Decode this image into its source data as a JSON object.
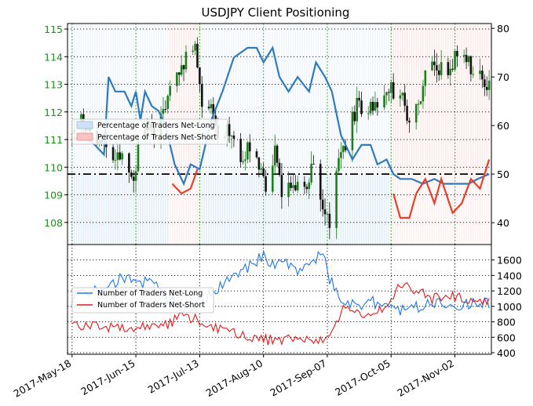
{
  "chart_data": [
    {
      "type": "candlestick",
      "title": "USDJPY Client Positioning",
      "x_ticks": [
        "2017-May-18",
        "2017-Jun-15",
        "2017-Jul-13",
        "2017-Aug-10",
        "2017-Sep-07",
        "2017-Oct-05",
        "2017-Nov-02"
      ],
      "x_range": [
        "2017-May-18",
        "2017-Nov-17"
      ],
      "left_axis": {
        "label": "",
        "range": [
          107.2,
          115.2
        ],
        "ticks": [
          108,
          109,
          110,
          111,
          112,
          113,
          114,
          115
        ],
        "color": "#228b22"
      },
      "right_axis": {
        "label": "",
        "range": [
          35.5,
          81
        ],
        "ticks": [
          40,
          50,
          60,
          70,
          80
        ]
      },
      "reference_line": {
        "axis": "right",
        "value": 50,
        "style": "dash-dot"
      },
      "price_path": [
        [
          "2017-May-18",
          111.2
        ],
        [
          "2017-May-22",
          111.6
        ],
        [
          "2017-May-26",
          111.3
        ],
        [
          "2017-May-31",
          110.8
        ],
        [
          "2017-Jun-05",
          110.3
        ],
        [
          "2017-Jun-09",
          110.4
        ],
        [
          "2017-Jun-14",
          109.5
        ],
        [
          "2017-Jun-16",
          110.9
        ],
        [
          "2017-Jun-20",
          111.4
        ],
        [
          "2017-Jun-23",
          111.3
        ],
        [
          "2017-Jun-27",
          112.1
        ],
        [
          "2017-Jul-03",
          113.2
        ],
        [
          "2017-Jul-07",
          114.0
        ],
        [
          "2017-Jul-11",
          114.2
        ],
        [
          "2017-Jul-14",
          112.5
        ],
        [
          "2017-Jul-18",
          112.0
        ],
        [
          "2017-Jul-21",
          111.2
        ],
        [
          "2017-Jul-26",
          111.4
        ],
        [
          "2017-Jul-31",
          110.4
        ],
        [
          "2017-Aug-03",
          110.7
        ],
        [
          "2017-Aug-07",
          110.6
        ],
        [
          "2017-Aug-11",
          109.2
        ],
        [
          "2017-Aug-15",
          110.6
        ],
        [
          "2017-Aug-18",
          109.2
        ],
        [
          "2017-Aug-23",
          109.2
        ],
        [
          "2017-Aug-28",
          109.1
        ],
        [
          "2017-Sep-01",
          110.2
        ],
        [
          "2017-Sep-05",
          108.8
        ],
        [
          "2017-Sep-08",
          107.9
        ],
        [
          "2017-Sep-12",
          110.2
        ],
        [
          "2017-Sep-15",
          110.8
        ],
        [
          "2017-Sep-20",
          112.3
        ],
        [
          "2017-Sep-25",
          111.9
        ],
        [
          "2017-Sep-29",
          112.5
        ],
        [
          "2017-Oct-04",
          112.8
        ],
        [
          "2017-Oct-09",
          112.6
        ],
        [
          "2017-Oct-13",
          111.8
        ],
        [
          "2017-Oct-17",
          112.2
        ],
        [
          "2017-Oct-20",
          113.4
        ],
        [
          "2017-Oct-25",
          113.8
        ],
        [
          "2017-Oct-30",
          113.0
        ],
        [
          "2017-Nov-02",
          114.1
        ],
        [
          "2017-Nov-06",
          113.9
        ],
        [
          "2017-Nov-10",
          113.5
        ],
        [
          "2017-Nov-15",
          113.2
        ],
        [
          "2017-Nov-17",
          112.9
        ]
      ],
      "pct_net_long": [
        [
          "2017-May-18",
          57
        ],
        [
          "2017-May-23",
          58
        ],
        [
          "2017-May-28",
          56
        ],
        [
          "2017-Jun-01",
          54
        ],
        [
          "2017-Jun-03",
          70
        ],
        [
          "2017-Jun-06",
          67
        ],
        [
          "2017-Jun-10",
          67
        ],
        [
          "2017-Jun-13",
          64
        ],
        [
          "2017-Jun-15",
          67
        ],
        [
          "2017-Jun-17",
          61
        ],
        [
          "2017-Jun-19",
          67
        ],
        [
          "2017-Jun-22",
          64
        ],
        [
          "2017-Jun-25",
          63
        ],
        [
          "2017-Jun-28",
          60
        ],
        [
          "2017-Jul-02",
          52
        ],
        [
          "2017-Jul-06",
          48
        ],
        [
          "2017-Jul-09",
          52
        ],
        [
          "2017-Jul-13",
          51
        ],
        [
          "2017-Jul-18",
          61
        ],
        [
          "2017-Jul-23",
          67
        ],
        [
          "2017-Jul-28",
          74
        ],
        [
          "2017-Aug-03",
          76
        ],
        [
          "2017-Aug-07",
          76
        ],
        [
          "2017-Aug-10",
          73
        ],
        [
          "2017-Aug-14",
          76
        ],
        [
          "2017-Aug-17",
          70
        ],
        [
          "2017-Aug-21",
          67
        ],
        [
          "2017-Aug-25",
          70
        ],
        [
          "2017-Aug-30",
          67
        ],
        [
          "2017-Sep-02",
          73
        ],
        [
          "2017-Sep-06",
          70
        ],
        [
          "2017-Sep-09",
          67
        ],
        [
          "2017-Sep-13",
          58
        ],
        [
          "2017-Sep-18",
          53
        ],
        [
          "2017-Sep-22",
          56
        ],
        [
          "2017-Sep-26",
          56
        ],
        [
          "2017-Sep-29",
          52
        ],
        [
          "2017-Oct-03",
          53
        ],
        [
          "2017-Oct-06",
          50
        ],
        [
          "2017-Oct-09",
          49
        ],
        [
          "2017-Oct-14",
          49
        ],
        [
          "2017-Oct-19",
          48
        ],
        [
          "2017-Oct-24",
          49
        ],
        [
          "2017-Oct-28",
          48
        ],
        [
          "2017-Nov-02",
          48
        ],
        [
          "2017-Nov-08",
          48
        ],
        [
          "2017-Nov-12",
          49
        ],
        [
          "2017-Nov-17",
          50
        ]
      ],
      "pct_net_short_series": [
        [
          "2017-Jul-01",
          48
        ],
        [
          "2017-Jul-05",
          46
        ],
        [
          "2017-Jul-09",
          47
        ],
        [
          "2017-Jul-12",
          51
        ],
        [
          "2017-Oct-06",
          46
        ],
        [
          "2017-Oct-09",
          41
        ],
        [
          "2017-Oct-13",
          41
        ],
        [
          "2017-Oct-16",
          46
        ],
        [
          "2017-Oct-20",
          49
        ],
        [
          "2017-Oct-24",
          44
        ],
        [
          "2017-Oct-27",
          49
        ],
        [
          "2017-Nov-01",
          42
        ],
        [
          "2017-Nov-05",
          44
        ],
        [
          "2017-Nov-09",
          49
        ],
        [
          "2017-Nov-13",
          47
        ],
        [
          "2017-Nov-17",
          53
        ]
      ],
      "legend": {
        "placement": "left",
        "entries": [
          "Percentage of Traders Net-Long",
          "Percentage of Traders Net-Short"
        ]
      },
      "grid": true
    },
    {
      "type": "line",
      "y_range": [
        380,
        1800
      ],
      "y_ticks": [
        400,
        600,
        800,
        1000,
        1200,
        1400,
        1600
      ],
      "series": [
        {
          "name": "Number of Traders Net-Long",
          "color": "#1f77e4",
          "points": [
            [
              "2017-May-18",
              1100
            ],
            [
              "2017-May-25",
              1200
            ],
            [
              "2017-Jun-01",
              1250
            ],
            [
              "2017-Jun-08",
              1350
            ],
            [
              "2017-Jun-12",
              1400
            ],
            [
              "2017-Jun-17",
              1300
            ],
            [
              "2017-Jun-22",
              1350
            ],
            [
              "2017-Jun-29",
              1100
            ],
            [
              "2017-Jul-06",
              950
            ],
            [
              "2017-Jul-13",
              1050
            ],
            [
              "2017-Jul-20",
              1200
            ],
            [
              "2017-Jul-27",
              1350
            ],
            [
              "2017-Aug-03",
              1500
            ],
            [
              "2017-Aug-10",
              1650
            ],
            [
              "2017-Aug-15",
              1500
            ],
            [
              "2017-Aug-20",
              1600
            ],
            [
              "2017-Aug-25",
              1400
            ],
            [
              "2017-Aug-31",
              1550
            ],
            [
              "2017-Sep-05",
              1700
            ],
            [
              "2017-Sep-08",
              1350
            ],
            [
              "2017-Sep-13",
              1100
            ],
            [
              "2017-Sep-20",
              1000
            ],
            [
              "2017-Sep-27",
              1050
            ],
            [
              "2017-Oct-04",
              1000
            ],
            [
              "2017-Oct-11",
              950
            ],
            [
              "2017-Oct-18",
              1000
            ],
            [
              "2017-Oct-25",
              1050
            ],
            [
              "2017-Nov-02",
              1000
            ],
            [
              "2017-Nov-09",
              1050
            ],
            [
              "2017-Nov-17",
              1050
            ]
          ]
        },
        {
          "name": "Number of Traders Net-Short",
          "color": "#e31a1c",
          "points": [
            [
              "2017-May-18",
              780
            ],
            [
              "2017-May-25",
              750
            ],
            [
              "2017-Jun-01",
              700
            ],
            [
              "2017-Jun-08",
              750
            ],
            [
              "2017-Jun-15",
              680
            ],
            [
              "2017-Jun-22",
              770
            ],
            [
              "2017-Jun-29",
              780
            ],
            [
              "2017-Jul-06",
              880
            ],
            [
              "2017-Jul-13",
              820
            ],
            [
              "2017-Jul-20",
              730
            ],
            [
              "2017-Jul-27",
              650
            ],
            [
              "2017-Aug-03",
              620
            ],
            [
              "2017-Aug-10",
              570
            ],
            [
              "2017-Aug-17",
              560
            ],
            [
              "2017-Aug-24",
              600
            ],
            [
              "2017-Aug-31",
              560
            ],
            [
              "2017-Sep-07",
              600
            ],
            [
              "2017-Sep-14",
              950
            ],
            [
              "2017-Sep-21",
              920
            ],
            [
              "2017-Sep-28",
              920
            ],
            [
              "2017-Oct-05",
              1050
            ],
            [
              "2017-Oct-09",
              1300
            ],
            [
              "2017-Oct-16",
              1200
            ],
            [
              "2017-Oct-23",
              1100
            ],
            [
              "2017-Oct-30",
              1150
            ],
            [
              "2017-Nov-06",
              1100
            ],
            [
              "2017-Nov-13",
              1080
            ],
            [
              "2017-Nov-17",
              1080
            ]
          ]
        }
      ],
      "legend": {
        "placement": "left",
        "entries": [
          "Number of Traders Net-Long",
          "Number of Traders Net-Short"
        ]
      },
      "grid": true
    }
  ]
}
